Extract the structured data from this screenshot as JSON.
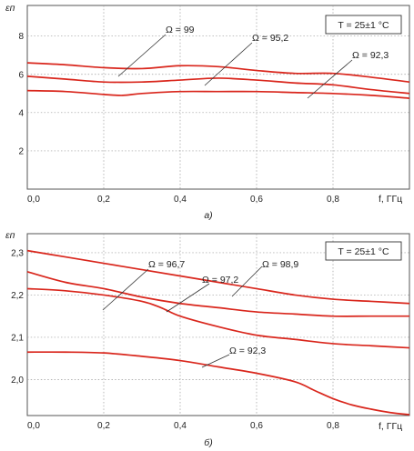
{
  "chart_data": [
    {
      "type": "line",
      "caption": "а)",
      "ylabel": "εп",
      "xlabel": "f, ГГц",
      "xlim": [
        0,
        1.0
      ],
      "ylim": [
        0,
        9.6
      ],
      "xticks": [
        "0,0",
        "0,2",
        "0,4",
        "0,6",
        "0,8"
      ],
      "yticks": [
        "2",
        "4",
        "6",
        "8"
      ],
      "grid": true,
      "box_label": "T = 25±1 °C",
      "series": [
        {
          "name": "Ω = 99",
          "x": [
            0.0,
            0.1,
            0.2,
            0.3,
            0.4,
            0.5,
            0.6,
            0.7,
            0.8,
            0.9,
            1.0
          ],
          "y": [
            6.6,
            6.5,
            6.35,
            6.3,
            6.45,
            6.4,
            6.2,
            6.05,
            6.05,
            5.85,
            5.6
          ]
        },
        {
          "name": "Ω = 95,2",
          "x": [
            0.0,
            0.1,
            0.2,
            0.3,
            0.4,
            0.5,
            0.6,
            0.7,
            0.8,
            0.9,
            1.0
          ],
          "y": [
            5.9,
            5.75,
            5.6,
            5.6,
            5.7,
            5.8,
            5.7,
            5.55,
            5.45,
            5.2,
            5.0
          ]
        },
        {
          "name": "Ω = 92,3",
          "x": [
            0.0,
            0.1,
            0.2,
            0.25,
            0.3,
            0.4,
            0.5,
            0.6,
            0.7,
            0.8,
            0.9,
            1.0
          ],
          "y": [
            5.15,
            5.1,
            4.95,
            4.9,
            5.0,
            5.1,
            5.1,
            5.1,
            5.05,
            5.0,
            4.9,
            4.75
          ]
        }
      ]
    },
    {
      "type": "line",
      "caption": "б)",
      "ylabel": "εп",
      "xlabel": "f, ГГц",
      "xlim": [
        0,
        1.0
      ],
      "ylim": [
        1.915,
        2.345
      ],
      "xticks": [
        "0,0",
        "0,2",
        "0,4",
        "0,6",
        "0,8"
      ],
      "yticks": [
        "2,0",
        "2,1",
        "2,2",
        "2,3"
      ],
      "grid": true,
      "box_label": "T = 25±1 °C",
      "series": [
        {
          "name": "Ω = 96,7",
          "x": [
            0.0,
            0.1,
            0.2,
            0.3,
            0.4,
            0.5,
            0.6,
            0.7,
            0.8,
            0.9,
            1.0
          ],
          "y": [
            2.305,
            2.29,
            2.275,
            2.26,
            2.245,
            2.23,
            2.215,
            2.2,
            2.19,
            2.185,
            2.18
          ]
        },
        {
          "name": "Ω = 97,2",
          "x": [
            0.0,
            0.1,
            0.2,
            0.3,
            0.4,
            0.5,
            0.6,
            0.7,
            0.8,
            0.9,
            1.0
          ],
          "y": [
            2.255,
            2.23,
            2.215,
            2.195,
            2.18,
            2.17,
            2.16,
            2.155,
            2.15,
            2.15,
            2.15
          ]
        },
        {
          "name": "Ω = 98,9",
          "x": [
            0.0,
            0.1,
            0.2,
            0.3,
            0.35,
            0.4,
            0.5,
            0.6,
            0.7,
            0.8,
            0.9,
            1.0
          ],
          "y": [
            2.215,
            2.21,
            2.2,
            2.185,
            2.17,
            2.15,
            2.125,
            2.105,
            2.095,
            2.085,
            2.08,
            2.075
          ]
        },
        {
          "name": "Ω = 92,3",
          "x": [
            0.0,
            0.1,
            0.2,
            0.3,
            0.4,
            0.5,
            0.6,
            0.7,
            0.75,
            0.8,
            0.85,
            0.9,
            0.95,
            1.0
          ],
          "y": [
            2.065,
            2.065,
            2.063,
            2.055,
            2.045,
            2.03,
            2.015,
            1.995,
            1.975,
            1.955,
            1.94,
            1.93,
            1.922,
            1.917
          ]
        }
      ]
    }
  ]
}
